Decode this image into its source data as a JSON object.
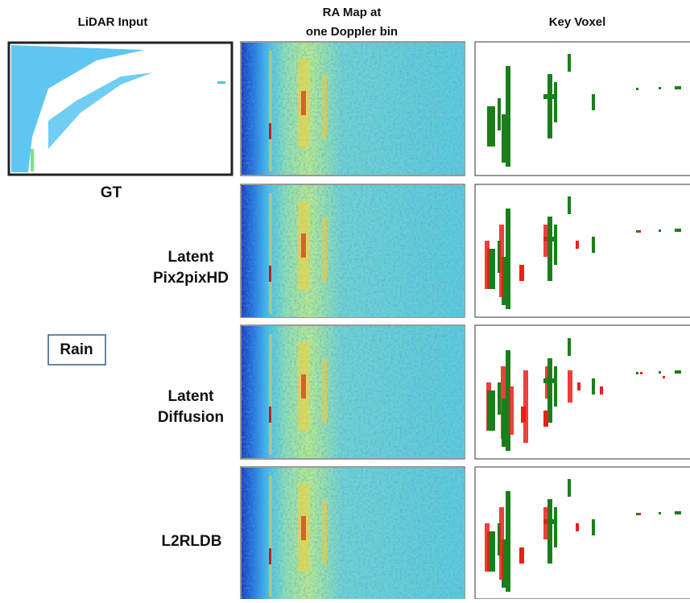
{
  "header": {
    "lidar_input": "LiDAR Input",
    "ra_map": [
      "RA Map at",
      "one Doppler bin"
    ],
    "key_voxel": "Key Voxel"
  },
  "rows": [
    {
      "label": [
        "GT"
      ]
    },
    {
      "label": [
        "Latent",
        "Pix2pixHD"
      ]
    },
    {
      "label": [
        "Latent",
        "Diffusion"
      ]
    },
    {
      "label": [
        "L2RLDB"
      ]
    }
  ],
  "condition": "Rain"
}
